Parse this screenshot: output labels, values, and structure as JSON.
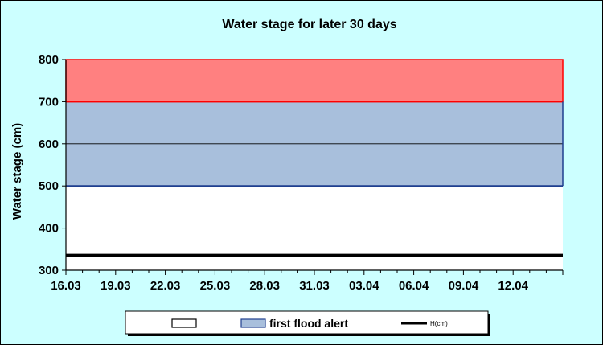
{
  "chart_data": {
    "type": "area",
    "title": "Water stage for later 30 days",
    "xlabel": "",
    "ylabel": "Water stage (cm)",
    "ylim": [
      300,
      800
    ],
    "yticks": [
      300,
      400,
      500,
      600,
      700,
      800
    ],
    "x_categories": [
      "16.03",
      "19.03",
      "22.03",
      "25.03",
      "28.03",
      "31.03",
      "03.04",
      "06.04",
      "09.04",
      "12.04"
    ],
    "x_day_span": 30,
    "grid": "horizontal",
    "bands": [
      {
        "name": "",
        "lower": 300,
        "upper": 500,
        "fill": "#ffffff",
        "edge": "#1f3f8f"
      },
      {
        "name": "first flood alert",
        "lower": 500,
        "upper": 700,
        "fill": "#a8bfdc",
        "edge": "#ff0000"
      },
      {
        "name": "",
        "lower": 700,
        "upper": 800,
        "fill": "#ff8080",
        "edge": "#ff0000"
      }
    ],
    "series": [
      {
        "name": "H(cm)",
        "values": [
          335,
          335,
          335,
          335,
          335,
          335,
          335,
          335,
          335,
          335
        ],
        "color": "#000000"
      }
    ],
    "legend": {
      "placement": "bottom",
      "entries": [
        {
          "label": "",
          "swatch": "#ffffff"
        },
        {
          "label": "first flood alert",
          "swatch": "#a8bfdc"
        },
        {
          "label": "H(cm)",
          "line": "#000000"
        }
      ]
    },
    "colors": {
      "background": "#ccffff",
      "plot_area": "#ffffff"
    }
  }
}
